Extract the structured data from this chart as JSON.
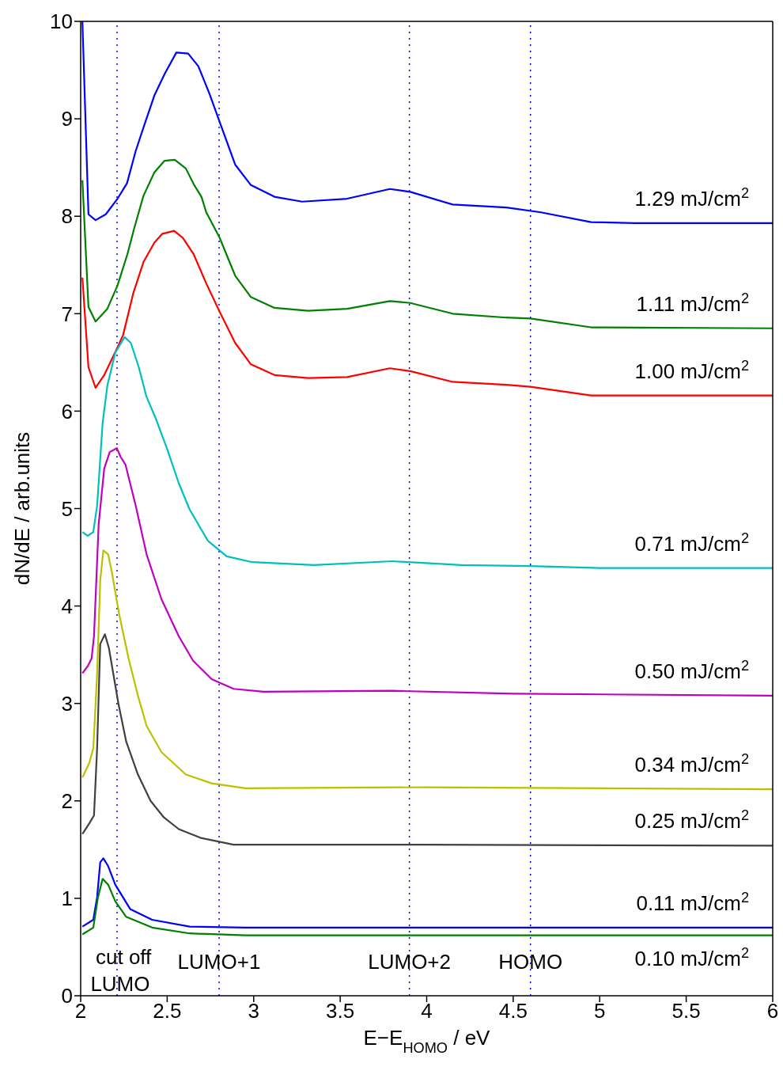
{
  "chart_data": {
    "type": "line",
    "xlabel": "E−E$_{HOMO}$  /  eV",
    "ylabel": "dN/dE  /  arb.units",
    "xlim": [
      2,
      6
    ],
    "xticks": [
      2,
      2.5,
      3,
      3.5,
      4,
      4.5,
      5,
      5.5,
      6
    ],
    "ylim": [
      0,
      10
    ],
    "yticks": [
      0,
      1,
      2,
      3,
      4,
      5,
      6,
      7,
      8,
      9,
      10
    ],
    "grid": false,
    "legend": false,
    "marker": "none",
    "line_style": "solid",
    "annotations": [
      "cut off"
    ],
    "ref_lines": [
      {
        "axis": "x",
        "value": 2.21,
        "label": "LUMO",
        "color": "#0000ff",
        "line_style": "dotted"
      },
      {
        "axis": "x",
        "value": 2.8,
        "label": "LUMO+1",
        "color": "#0000ff",
        "line_style": "dotted"
      },
      {
        "axis": "x",
        "value": 3.9,
        "label": "LUMO+2",
        "color": "#0000ff",
        "line_style": "dotted"
      },
      {
        "axis": "x",
        "value": 4.6,
        "label": "HOMO",
        "color": "#0000ff",
        "line_style": "dotted"
      }
    ],
    "series": [
      {
        "name": "1.29 mJ/cm$^{2}$",
        "color": "#0000ff",
        "x": [
          2.01,
          2.045,
          2.086,
          2.145,
          2.213,
          2.268,
          2.318,
          2.363,
          2.426,
          2.485,
          2.553,
          2.621,
          2.68,
          2.744,
          2.803,
          2.893,
          2.984,
          3.12,
          3.28,
          3.54,
          3.787,
          3.905,
          4.15,
          4.46,
          4.66,
          4.95,
          5.2,
          6
        ],
        "values": [
          10.0,
          8.02,
          7.96,
          8.02,
          8.18,
          8.34,
          8.67,
          8.91,
          9.24,
          9.46,
          9.68,
          9.67,
          9.54,
          9.26,
          8.97,
          8.53,
          8.32,
          8.2,
          8.15,
          8.18,
          8.28,
          8.25,
          8.12,
          8.09,
          8.04,
          7.94,
          7.93,
          7.93
        ]
      },
      {
        "name": "1.11 mJ/cm$^{2}$",
        "color": "#008000",
        "x": [
          2.01,
          2.045,
          2.086,
          2.154,
          2.213,
          2.27,
          2.31,
          2.363,
          2.426,
          2.485,
          2.544,
          2.608,
          2.653,
          2.698,
          2.726,
          2.803,
          2.893,
          2.984,
          3.12,
          3.315,
          3.54,
          3.787,
          3.905,
          4.15,
          4.46,
          4.6,
          4.95,
          6
        ],
        "values": [
          8.37,
          7.07,
          6.92,
          7.05,
          7.29,
          7.61,
          7.88,
          8.21,
          8.45,
          8.57,
          8.58,
          8.49,
          8.33,
          8.2,
          8.04,
          7.78,
          7.39,
          7.17,
          7.06,
          7.03,
          7.05,
          7.13,
          7.11,
          7.0,
          6.96,
          6.95,
          6.86,
          6.85
        ]
      },
      {
        "name": "1.00 mJ/cm$^{2}$",
        "color": "#ff0000",
        "x": [
          2.01,
          2.045,
          2.086,
          2.136,
          2.204,
          2.245,
          2.304,
          2.363,
          2.426,
          2.472,
          2.54,
          2.59,
          2.653,
          2.726,
          2.803,
          2.893,
          2.984,
          3.12,
          3.315,
          3.54,
          3.787,
          3.905,
          4.15,
          4.46,
          4.6,
          4.95,
          6
        ],
        "values": [
          7.37,
          6.45,
          6.24,
          6.37,
          6.62,
          6.78,
          7.21,
          7.53,
          7.73,
          7.82,
          7.85,
          7.78,
          7.61,
          7.31,
          7.02,
          6.7,
          6.48,
          6.37,
          6.34,
          6.35,
          6.44,
          6.41,
          6.3,
          6.27,
          6.25,
          6.16,
          6.16
        ]
      },
      {
        "name": "0.71 mJ/cm$^{2}$",
        "color": "#00bfbf",
        "x": [
          2.01,
          2.04,
          2.073,
          2.095,
          2.127,
          2.154,
          2.2,
          2.254,
          2.29,
          2.336,
          2.38,
          2.435,
          2.5,
          2.567,
          2.63,
          2.735,
          2.844,
          2.993,
          3.347,
          3.8,
          4.2,
          4.6,
          5,
          6
        ],
        "values": [
          4.76,
          4.72,
          4.76,
          5.03,
          5.88,
          6.26,
          6.6,
          6.76,
          6.7,
          6.45,
          6.15,
          5.92,
          5.61,
          5.26,
          4.99,
          4.67,
          4.51,
          4.45,
          4.42,
          4.46,
          4.42,
          4.41,
          4.39,
          4.39
        ]
      },
      {
        "name": "0.50 mJ/cm$^{2}$",
        "color": "#bf00bf",
        "x": [
          2.01,
          2.04,
          2.063,
          2.077,
          2.104,
          2.136,
          2.168,
          2.209,
          2.231,
          2.259,
          2.318,
          2.381,
          2.467,
          2.567,
          2.649,
          2.757,
          2.884,
          3.057,
          3.8,
          4.5,
          6
        ],
        "values": [
          3.31,
          3.38,
          3.46,
          3.69,
          4.84,
          5.41,
          5.58,
          5.62,
          5.53,
          5.45,
          5.03,
          4.53,
          4.07,
          3.69,
          3.44,
          3.25,
          3.15,
          3.12,
          3.13,
          3.1,
          3.08
        ]
      },
      {
        "name": "0.34 mJ/cm$^{2}$",
        "color": "#bfbf00",
        "x": [
          2.01,
          2.05,
          2.073,
          2.095,
          2.113,
          2.131,
          2.159,
          2.181,
          2.222,
          2.277,
          2.331,
          2.381,
          2.467,
          2.608,
          2.757,
          2.952,
          4,
          6
        ],
        "values": [
          2.24,
          2.39,
          2.54,
          3.3,
          4.26,
          4.57,
          4.53,
          4.34,
          3.92,
          3.46,
          3.08,
          2.77,
          2.5,
          2.27,
          2.18,
          2.13,
          2.14,
          2.12
        ]
      },
      {
        "name": "0.25 mJ/cm$^{2}$",
        "color": "#404040",
        "x": [
          2.01,
          2.05,
          2.077,
          2.095,
          2.113,
          2.14,
          2.163,
          2.218,
          2.263,
          2.331,
          2.404,
          2.481,
          2.567,
          2.694,
          2.884,
          4,
          6
        ],
        "values": [
          1.66,
          1.77,
          1.85,
          2.54,
          3.61,
          3.71,
          3.57,
          3.0,
          2.61,
          2.27,
          2.0,
          1.83,
          1.71,
          1.62,
          1.55,
          1.55,
          1.54
        ]
      },
      {
        "name": "0.11 mJ/cm$^{2}$",
        "color": "#0000ff",
        "x": [
          2.01,
          2.073,
          2.095,
          2.113,
          2.131,
          2.159,
          2.2,
          2.286,
          2.413,
          2.63,
          2.952,
          6
        ],
        "values": [
          0.71,
          0.78,
          1.01,
          1.37,
          1.41,
          1.33,
          1.14,
          0.89,
          0.78,
          0.71,
          0.7,
          0.7
        ]
      },
      {
        "name": "0.10 mJ/cm$^{2}$",
        "color": "#008000",
        "x": [
          2.01,
          2.073,
          2.1,
          2.127,
          2.159,
          2.2,
          2.263,
          2.413,
          2.63,
          2.952,
          6
        ],
        "values": [
          0.63,
          0.7,
          1.01,
          1.2,
          1.14,
          0.97,
          0.81,
          0.7,
          0.64,
          0.62,
          0.62
        ]
      }
    ]
  }
}
